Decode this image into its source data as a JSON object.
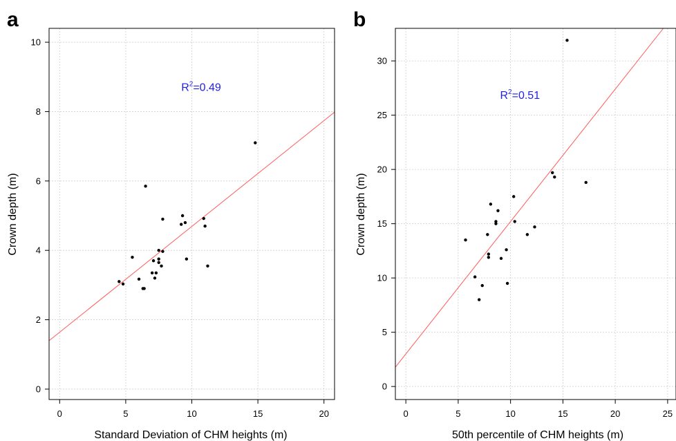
{
  "colors": {
    "point": "#000000",
    "fit_line": "#ff5a5a",
    "annotation": "#1f1fe6",
    "grid": "#cfcfcf"
  },
  "chart_data": [
    {
      "type": "scatter",
      "panel": "a",
      "xlabel": "Standard Deviation of CHM heights (m)",
      "ylabel": "Crown depth (m)",
      "xlim": [
        -0.8,
        20.8
      ],
      "ylim": [
        -0.3,
        10.4
      ],
      "xticks": [
        0,
        5,
        10,
        15,
        20
      ],
      "yticks": [
        0,
        2,
        4,
        6,
        8,
        10
      ],
      "grid": true,
      "annotation": {
        "label": "R",
        "sup": "2",
        "value": "=0.49",
        "x": 9.2,
        "y": 8.6
      },
      "fit_line": {
        "intercept": 1.64,
        "slope": 0.305
      },
      "points": [
        [
          4.5,
          3.1
        ],
        [
          4.8,
          3.03
        ],
        [
          5.5,
          3.8
        ],
        [
          6.0,
          3.17
        ],
        [
          6.3,
          2.9
        ],
        [
          6.4,
          2.9
        ],
        [
          6.5,
          5.85
        ],
        [
          7.0,
          3.35
        ],
        [
          7.1,
          3.7
        ],
        [
          7.2,
          3.2
        ],
        [
          7.3,
          3.35
        ],
        [
          7.5,
          3.75
        ],
        [
          7.5,
          4.0
        ],
        [
          7.5,
          3.65
        ],
        [
          7.7,
          3.55
        ],
        [
          7.8,
          4.9
        ],
        [
          7.8,
          3.97
        ],
        [
          9.2,
          4.75
        ],
        [
          9.3,
          5.0
        ],
        [
          9.5,
          4.8
        ],
        [
          9.6,
          3.75
        ],
        [
          10.9,
          4.92
        ],
        [
          11.0,
          4.7
        ],
        [
          11.2,
          3.55
        ],
        [
          14.8,
          7.1
        ]
      ]
    },
    {
      "type": "scatter",
      "panel": "b",
      "xlabel": "50th percentile of CHM heights (m)",
      "ylabel": "Crown depth (m)",
      "xlim": [
        -1.0,
        25.8
      ],
      "ylim": [
        -1.2,
        33.0
      ],
      "xticks": [
        0,
        5,
        10,
        15,
        20,
        25
      ],
      "yticks": [
        0,
        5,
        10,
        15,
        20,
        25,
        30
      ],
      "grid": true,
      "annotation": {
        "label": "R",
        "sup": "2",
        "value": "=0.51",
        "x": 9.0,
        "y": 26.5
      },
      "fit_line": {
        "intercept": 3.0,
        "slope": 1.22
      },
      "points": [
        [
          5.7,
          13.5
        ],
        [
          6.6,
          10.1
        ],
        [
          7.0,
          8.0
        ],
        [
          7.3,
          9.3
        ],
        [
          7.8,
          14.0
        ],
        [
          7.9,
          12.2
        ],
        [
          7.9,
          11.9
        ],
        [
          8.1,
          16.8
        ],
        [
          8.6,
          15.0
        ],
        [
          8.6,
          15.2
        ],
        [
          8.8,
          16.2
        ],
        [
          9.1,
          11.8
        ],
        [
          9.6,
          12.6
        ],
        [
          9.7,
          9.5
        ],
        [
          10.3,
          17.5
        ],
        [
          10.4,
          15.2
        ],
        [
          11.6,
          14.0
        ],
        [
          12.3,
          14.7
        ],
        [
          14.0,
          19.7
        ],
        [
          14.2,
          19.3
        ],
        [
          15.4,
          31.9
        ],
        [
          17.2,
          18.8
        ]
      ]
    }
  ]
}
